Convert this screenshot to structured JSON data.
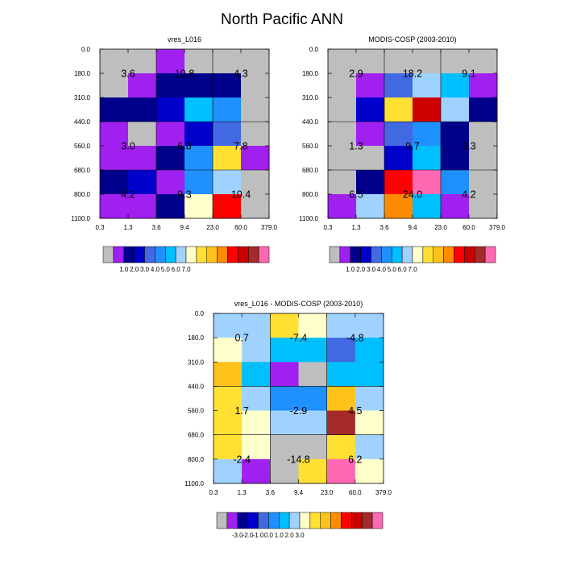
{
  "title": "North Pacific ANN",
  "palettes": {
    "abs": [
      "#bebebe",
      "#a020f0",
      "#00008b",
      "#0000cd",
      "#4169e1",
      "#1e90ff",
      "#00bfff",
      "#a0d2ff",
      "#ffffcc",
      "#ffe033",
      "#ffc21a",
      "#ff8c00",
      "#ff0000",
      "#cd0000",
      "#a52a2a",
      "#ff69b4"
    ],
    "diff": [
      "#bebebe",
      "#a020f0",
      "#00008b",
      "#0000cd",
      "#4169e1",
      "#1e90ff",
      "#00bfff",
      "#a0d2ff",
      "#ffffcc",
      "#ffe033",
      "#ffc21a",
      "#ff8c00",
      "#ff0000",
      "#cd0000",
      "#a52a2a",
      "#ff69b4"
    ]
  },
  "chart_data": [
    {
      "type": "heatmap",
      "title": "vres_L016",
      "xticks": [
        "0.3",
        "1.3",
        "3.6",
        "9.4",
        "23.0",
        "60.0",
        "379.0"
      ],
      "yticks": [
        "0.0",
        "180.0",
        "310.0",
        "440.0",
        "560.0",
        "680.0",
        "800.0",
        "1100.0"
      ],
      "cells": [
        [
          0,
          0,
          1,
          0,
          0,
          0
        ],
        [
          0,
          1,
          2,
          2,
          2,
          0
        ],
        [
          2,
          2,
          3,
          6,
          5,
          0
        ],
        [
          1,
          0,
          1,
          3,
          4,
          0
        ],
        [
          1,
          1,
          2,
          5,
          9,
          1
        ],
        [
          2,
          3,
          1,
          5,
          7,
          0
        ],
        [
          1,
          1,
          2,
          8,
          12,
          0
        ]
      ],
      "annotations": [
        {
          "row": 1,
          "col": 1,
          "text": "3.6"
        },
        {
          "row": 1,
          "col": 3,
          "text": "10.8"
        },
        {
          "row": 1,
          "col": 5,
          "text": "4.3"
        },
        {
          "row": 4,
          "col": 1,
          "text": "3.0"
        },
        {
          "row": 4,
          "col": 3,
          "text": "6.8"
        },
        {
          "row": 4,
          "col": 5,
          "text": "7.8"
        },
        {
          "row": 6,
          "col": 1,
          "text": "4.2"
        },
        {
          "row": 6,
          "col": 3,
          "text": "9.3"
        },
        {
          "row": 6,
          "col": 5,
          "text": "10.4"
        }
      ],
      "palette": "abs",
      "colorbar_labels": [
        "1.0",
        "2.0",
        "3.0",
        "4.0",
        "5.0",
        "6.0",
        "7.0"
      ]
    },
    {
      "type": "heatmap",
      "title": "MODIS-COSP (2003-2010)",
      "xticks": [
        "0.3",
        "1.3",
        "3.6",
        "9.4",
        "23.0",
        "60.0",
        "379.0"
      ],
      "yticks": [
        "0.0",
        "180.0",
        "310.0",
        "440.0",
        "560.0",
        "680.0",
        "800.0",
        "1100.0"
      ],
      "cells": [
        [
          0,
          0,
          0,
          0,
          0,
          0
        ],
        [
          0,
          1,
          4,
          7,
          6,
          1
        ],
        [
          0,
          3,
          9,
          13,
          7,
          2
        ],
        [
          0,
          1,
          4,
          5,
          2,
          0
        ],
        [
          0,
          0,
          3,
          6,
          2,
          0
        ],
        [
          0,
          2,
          12,
          15,
          5,
          0
        ],
        [
          1,
          7,
          11,
          6,
          1,
          0
        ]
      ],
      "annotations": [
        {
          "row": 1,
          "col": 1,
          "text": "2.9"
        },
        {
          "row": 1,
          "col": 3,
          "text": "18.2"
        },
        {
          "row": 1,
          "col": 5,
          "text": "9.1"
        },
        {
          "row": 4,
          "col": 1,
          "text": "1.3"
        },
        {
          "row": 4,
          "col": 3,
          "text": "9.7"
        },
        {
          "row": 4,
          "col": 5,
          "text": "3.3"
        },
        {
          "row": 6,
          "col": 1,
          "text": "6.5"
        },
        {
          "row": 6,
          "col": 3,
          "text": "24.0"
        },
        {
          "row": 6,
          "col": 5,
          "text": "4.2"
        }
      ],
      "palette": "abs",
      "colorbar_labels": [
        "1.0",
        "2.0",
        "3.0",
        "4.0",
        "5.0",
        "6.0",
        "7.0"
      ]
    },
    {
      "type": "heatmap",
      "title": "vres_L016 - MODIS-COSP (2003-2010)",
      "xticks": [
        "0.3",
        "1.3",
        "3.6",
        "9.4",
        "23.0",
        "60.0",
        "379.0"
      ],
      "yticks": [
        "0.0",
        "180.0",
        "310.0",
        "440.0",
        "560.0",
        "680.0",
        "800.0",
        "1100.0"
      ],
      "cells": [
        [
          7,
          7,
          9,
          8,
          7,
          7
        ],
        [
          8,
          7,
          6,
          6,
          4,
          6
        ],
        [
          10,
          6,
          1,
          0,
          6,
          6
        ],
        [
          9,
          7,
          5,
          5,
          10,
          7
        ],
        [
          9,
          8,
          7,
          7,
          14,
          8
        ],
        [
          9,
          8,
          0,
          0,
          9,
          7
        ],
        [
          7,
          1,
          0,
          9,
          15,
          8
        ]
      ],
      "annotations": [
        {
          "row": 1,
          "col": 1,
          "text": "0.7"
        },
        {
          "row": 1,
          "col": 3,
          "text": "-7.4"
        },
        {
          "row": 1,
          "col": 5,
          "text": "-4.8"
        },
        {
          "row": 4,
          "col": 1,
          "text": "1.7"
        },
        {
          "row": 4,
          "col": 3,
          "text": "-2.9"
        },
        {
          "row": 4,
          "col": 5,
          "text": "4.5"
        },
        {
          "row": 6,
          "col": 1,
          "text": "-2.4"
        },
        {
          "row": 6,
          "col": 3,
          "text": "-14.8"
        },
        {
          "row": 6,
          "col": 5,
          "text": "6.2"
        }
      ],
      "palette": "diff",
      "colorbar_labels": [
        "-3.0",
        "-2.0",
        "-1.0",
        "0.0",
        "1.0",
        "2.0",
        "3.0"
      ]
    }
  ]
}
